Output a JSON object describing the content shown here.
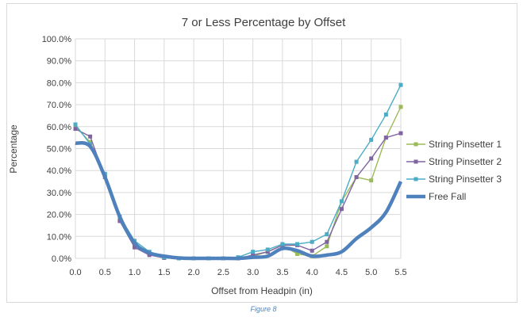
{
  "chart_data": {
    "type": "line",
    "title": "7 or Less Percentage by Offset",
    "xlabel": "Offset from Headpin (in)",
    "ylabel": "Percentage",
    "xlim": [
      0,
      5.5
    ],
    "ylim": [
      0,
      100
    ],
    "grid": true,
    "legend_position": "right",
    "x_ticks": [
      "0.0",
      "0.5",
      "1.0",
      "1.5",
      "2.0",
      "2.5",
      "3.0",
      "3.5",
      "4.0",
      "4.5",
      "5.0",
      "5.5"
    ],
    "y_ticks": [
      "0.0%",
      "10.0%",
      "20.0%",
      "30.0%",
      "40.0%",
      "50.0%",
      "60.0%",
      "70.0%",
      "80.0%",
      "90.0%",
      "100.0%"
    ],
    "x": [
      0,
      0.25,
      0.5,
      0.75,
      1,
      1.25,
      1.5,
      1.75,
      2,
      2.25,
      2.5,
      2.75,
      3,
      3.25,
      3.5,
      3.75,
      4,
      4.25,
      4.5,
      4.75,
      5,
      5.25,
      5.5
    ],
    "series": [
      {
        "name": "String Pinsetter 1",
        "color": "#9bbb59",
        "marker": true,
        "smooth": false,
        "values": [
          60,
          53,
          38,
          18,
          6,
          2,
          0.3,
          0,
          0,
          0,
          0,
          0,
          1,
          3,
          6,
          2,
          1,
          5.5,
          26,
          37,
          35.5,
          55,
          69
        ]
      },
      {
        "name": "String Pinsetter 2",
        "color": "#8064a2",
        "marker": true,
        "smooth": false,
        "values": [
          59,
          55.5,
          37,
          17,
          5,
          1.5,
          0.2,
          0,
          0,
          0,
          0,
          0,
          1.5,
          3,
          6,
          6,
          3.5,
          7.5,
          22.5,
          37,
          45.5,
          55,
          57
        ]
      },
      {
        "name": "String Pinsetter 3",
        "color": "#4bacc6",
        "marker": true,
        "smooth": false,
        "values": [
          61,
          52,
          38.5,
          19,
          8,
          3,
          0.5,
          0,
          0,
          0,
          0,
          0.5,
          3,
          4,
          6.5,
          6.5,
          7.5,
          11,
          26,
          44,
          54,
          65.5,
          79
        ]
      },
      {
        "name": "Free Fall",
        "color": "#4f81bd",
        "marker": false,
        "smooth": true,
        "values": [
          52.5,
          51,
          37,
          19,
          7,
          2.5,
          1,
          0.2,
          0,
          0,
          0,
          0,
          0.5,
          1,
          4.5,
          3.5,
          1,
          1.5,
          3,
          9,
          14,
          21,
          35
        ]
      }
    ]
  },
  "caption": "Figure 8"
}
